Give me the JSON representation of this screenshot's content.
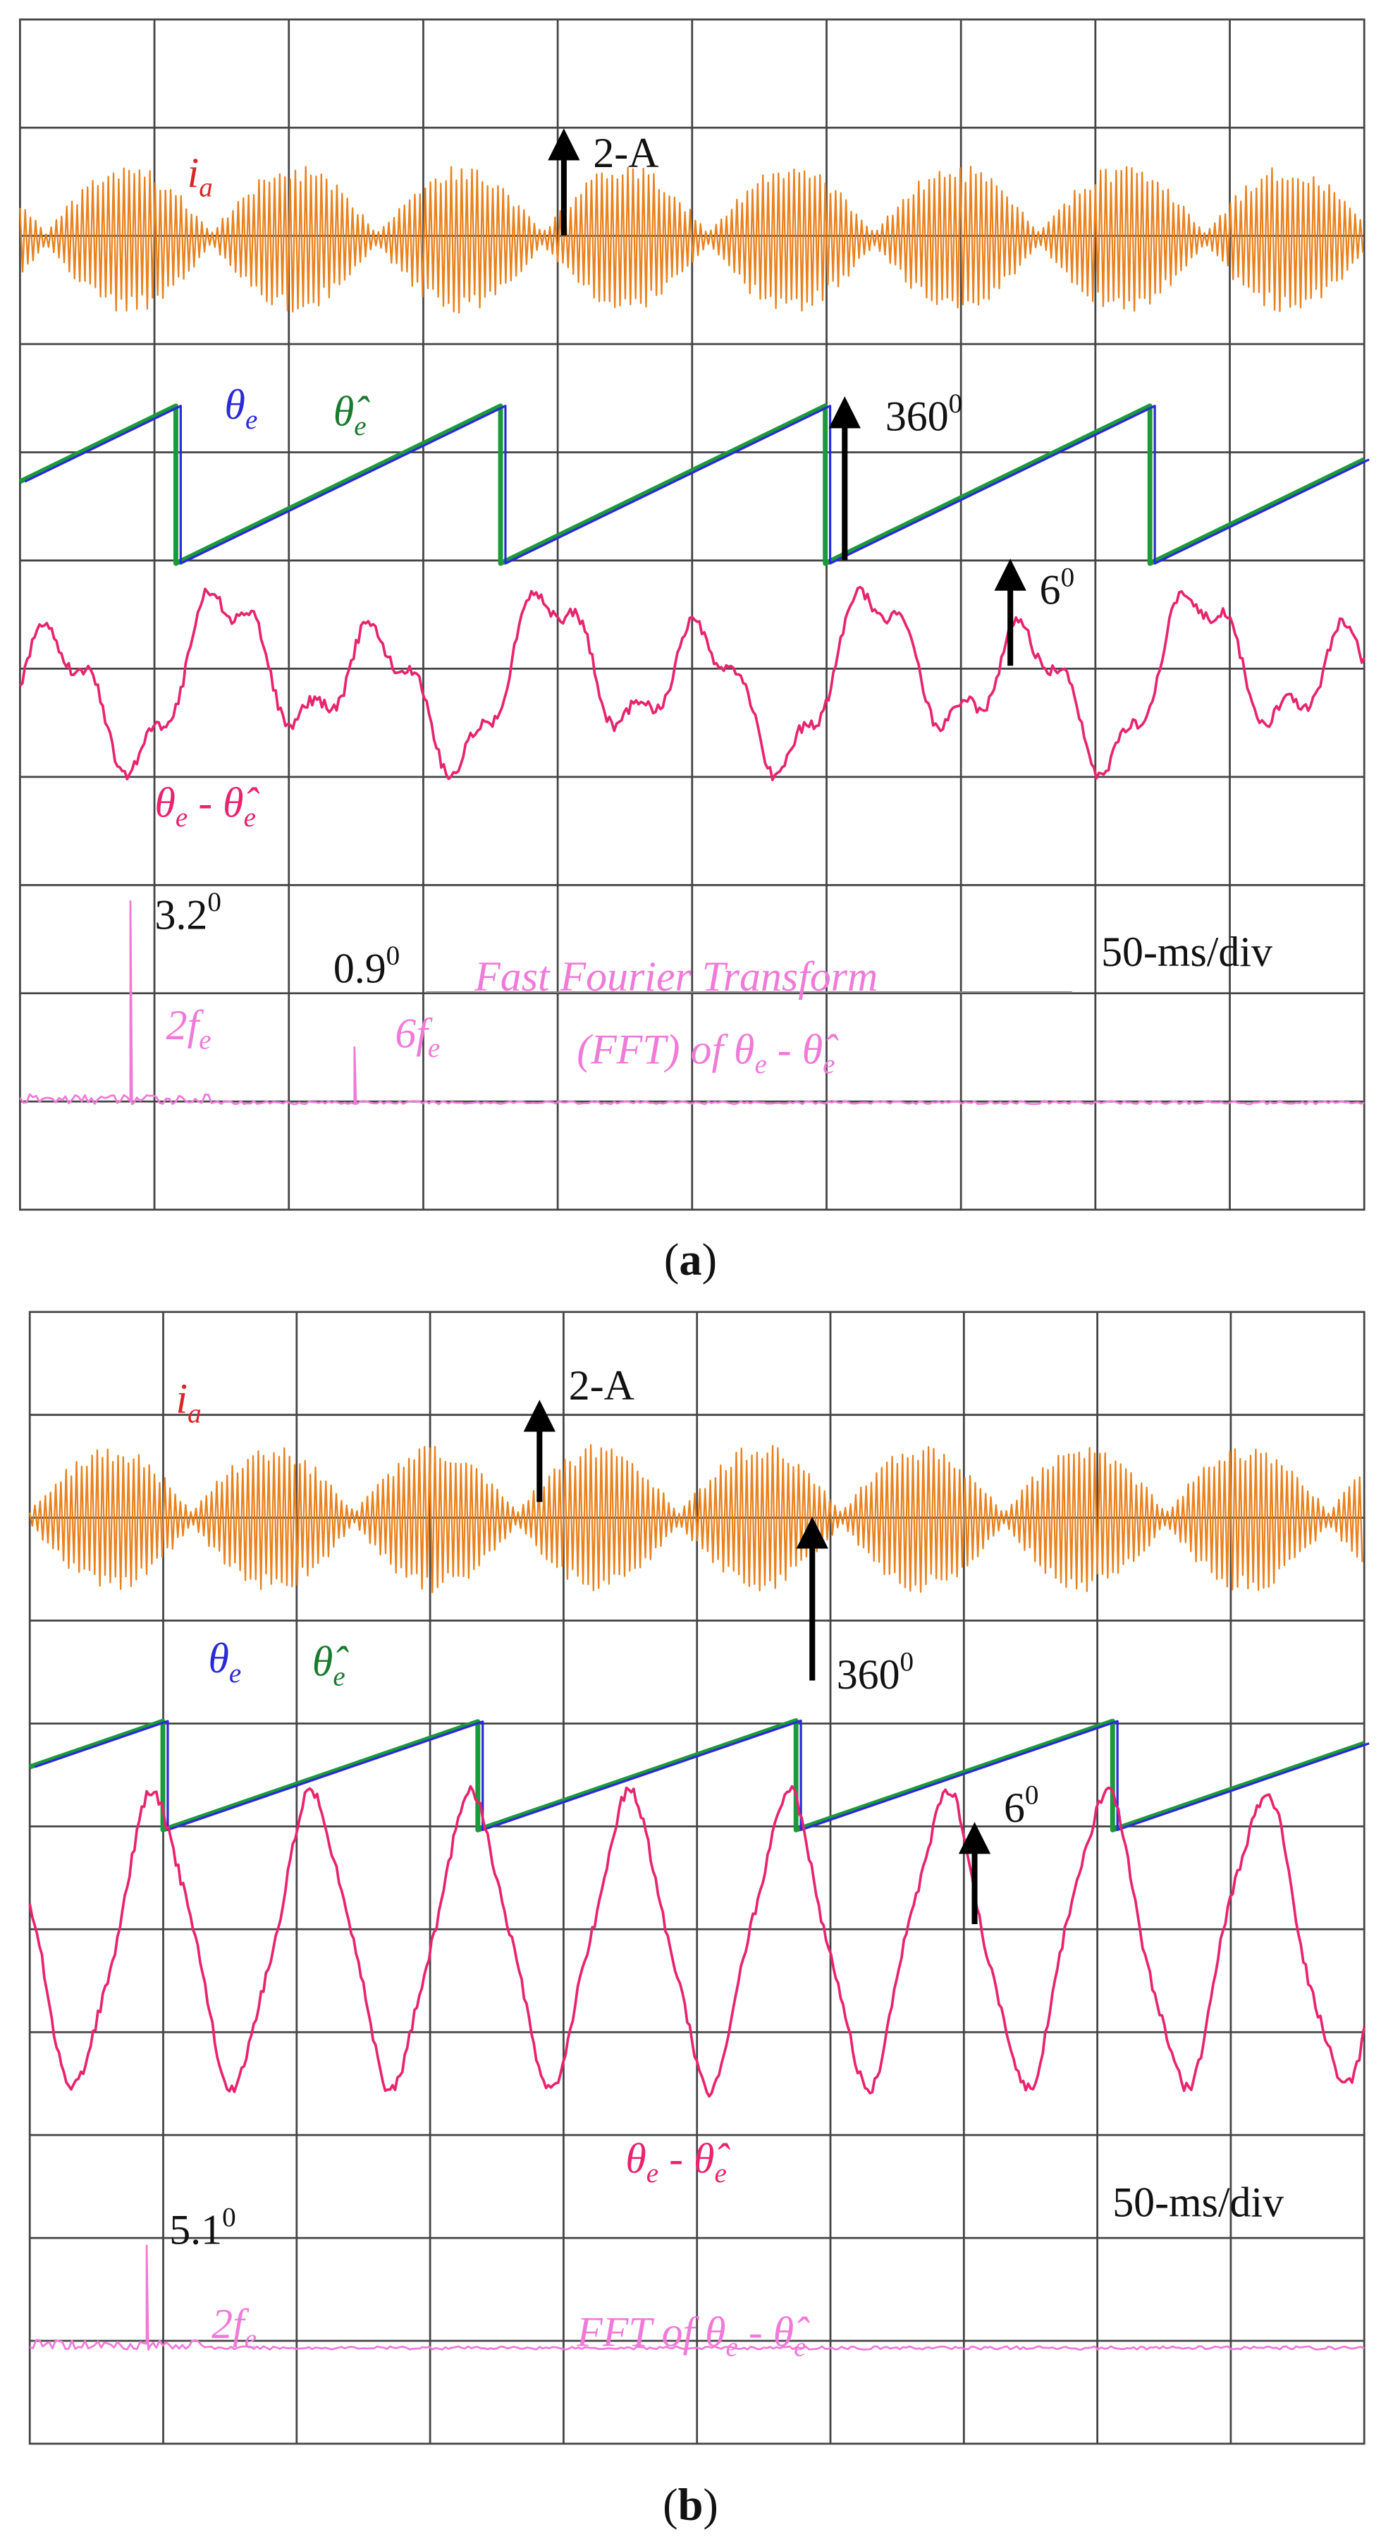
{
  "panels": [
    {
      "label": {
        "open": "(",
        "letter": "a",
        "close": ")"
      },
      "annotations": [
        {
          "color": "#d8262a",
          "italic": true,
          "runs": [
            {
              "text": "i"
            },
            {
              "sub": "a"
            }
          ]
        },
        {
          "color": "#111111",
          "italic": false,
          "runs": [
            {
              "text": "2-A"
            }
          ]
        },
        {
          "color": "#2a2ad8",
          "italic": true,
          "runs": [
            {
              "text": "θ"
            },
            {
              "sub": "e"
            }
          ]
        },
        {
          "color": "#1b7a2e",
          "italic": true,
          "runs": [
            {
              "text": "θ̂"
            },
            {
              "sub": "e"
            }
          ]
        },
        {
          "color": "#111111",
          "italic": false,
          "runs": [
            {
              "text": "360"
            },
            {
              "sup": "0"
            }
          ]
        },
        {
          "color": "#111111",
          "italic": false,
          "runs": [
            {
              "text": "6"
            },
            {
              "sup": "0"
            }
          ]
        },
        {
          "color": "#e8246e",
          "italic": true,
          "runs": [
            {
              "text": "θ"
            },
            {
              "sub": "e"
            },
            {
              "text": " - θ̂"
            },
            {
              "sub": "e"
            }
          ]
        },
        {
          "color": "#111111",
          "italic": false,
          "runs": [
            {
              "text": "3.2"
            },
            {
              "sup": "0"
            }
          ]
        },
        {
          "color": "#111111",
          "italic": false,
          "runs": [
            {
              "text": "0.9"
            },
            {
              "sup": "0"
            }
          ]
        },
        {
          "color": "#f07ad8",
          "italic": true,
          "runs": [
            {
              "text": "2f"
            },
            {
              "sub": "e"
            }
          ]
        },
        {
          "color": "#f07ad8",
          "italic": true,
          "runs": [
            {
              "text": "6f"
            },
            {
              "sub": "e"
            }
          ]
        },
        {
          "color": "#f07ad8",
          "italic": true,
          "runs": [
            {
              "text": "Fast Fourier Transform"
            }
          ]
        },
        {
          "color": "#f07ad8",
          "italic": true,
          "runs": [
            {
              "text": "(FFT) of θ"
            },
            {
              "sub": "e"
            },
            {
              "text": " - θ̂"
            },
            {
              "sub": "e"
            }
          ]
        },
        {
          "color": "#111111",
          "italic": false,
          "runs": [
            {
              "text": "50-ms/div"
            }
          ]
        }
      ]
    },
    {
      "label": {
        "open": "(",
        "letter": "b",
        "close": ")"
      },
      "annotations": [
        {
          "color": "#d8262a",
          "italic": true,
          "runs": [
            {
              "text": "i"
            },
            {
              "sub": "a"
            }
          ]
        },
        {
          "color": "#111111",
          "italic": false,
          "runs": [
            {
              "text": "2-A"
            }
          ]
        },
        {
          "color": "#2a2ad8",
          "italic": true,
          "runs": [
            {
              "text": "θ"
            },
            {
              "sub": "e"
            }
          ]
        },
        {
          "color": "#1b7a2e",
          "italic": true,
          "runs": [
            {
              "text": "θ̂"
            },
            {
              "sub": "e"
            }
          ]
        },
        {
          "color": "#111111",
          "italic": false,
          "runs": [
            {
              "text": "360"
            },
            {
              "sup": "0"
            }
          ]
        },
        {
          "color": "#111111",
          "italic": false,
          "runs": [
            {
              "text": "6"
            },
            {
              "sup": "0"
            }
          ]
        },
        {
          "color": "#e8246e",
          "italic": true,
          "runs": [
            {
              "text": "θ"
            },
            {
              "sub": "e"
            },
            {
              "text": " - θ̂"
            },
            {
              "sub": "e"
            }
          ]
        },
        {
          "color": "#111111",
          "italic": false,
          "runs": [
            {
              "text": "5.1"
            },
            {
              "sup": "0"
            }
          ]
        },
        {
          "color": "#111111",
          "italic": false,
          "runs": [
            {
              "text": "50-ms/div"
            }
          ]
        },
        {
          "color": "#f07ad8",
          "italic": true,
          "runs": [
            {
              "text": "2f"
            },
            {
              "sub": "e"
            }
          ]
        },
        {
          "color": "#f07ad8",
          "italic": true,
          "runs": [
            {
              "text": "FFT of θ"
            },
            {
              "sub": "e"
            },
            {
              "text": " - θ̂"
            },
            {
              "sub": "e"
            }
          ]
        }
      ]
    }
  ]
}
